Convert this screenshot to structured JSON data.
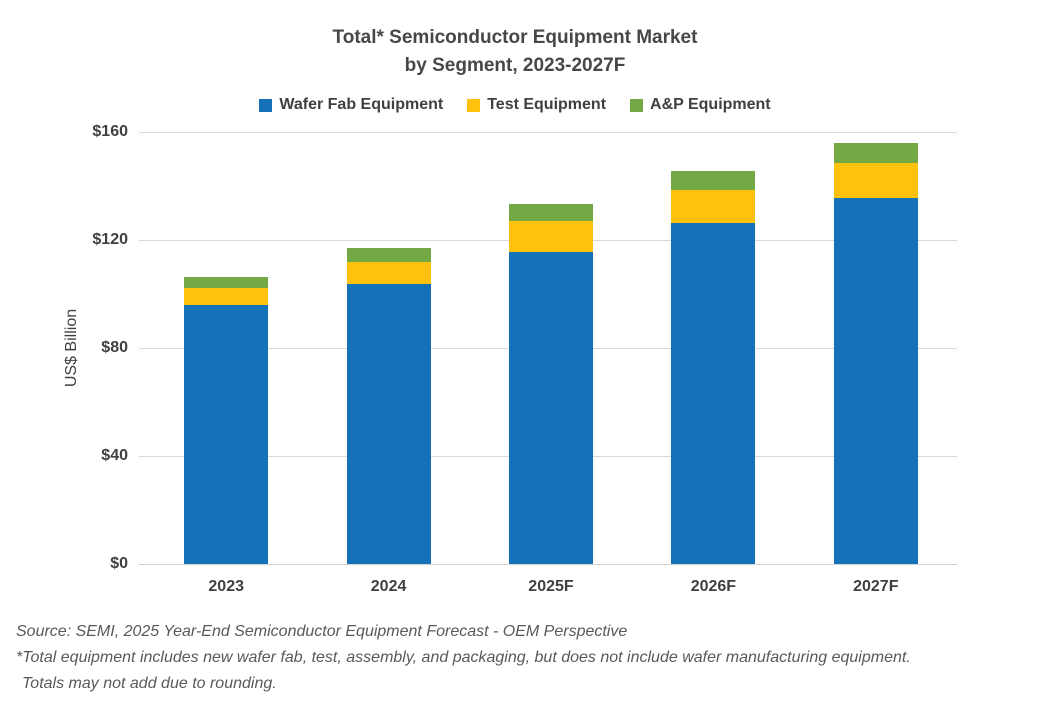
{
  "title": {
    "line1": "Total* Semiconductor Equipment Market",
    "line2": "by Segment, 2023-2027F"
  },
  "colors": {
    "wafer_fab": "#1572B8",
    "test": "#FEC20E",
    "anp": "#72A944",
    "gridline": "#D9D9D9",
    "text": "#404040",
    "footer_text": "#595959"
  },
  "chart_data": {
    "type": "bar",
    "subtype": "stacked",
    "categories": [
      "2023",
      "2024",
      "2025F",
      "2026F",
      "2027F"
    ],
    "series": [
      {
        "name": "Wafer Fab Equipment",
        "color": "#1572B8",
        "values": [
          95.8,
          103.8,
          115.7,
          126.2,
          135.4
        ]
      },
      {
        "name": "Test Equipment",
        "color": "#FEC20E",
        "values": [
          6.4,
          8.2,
          11.4,
          12.3,
          13.3
        ]
      },
      {
        "name": "A&P Equipment",
        "color": "#72A944",
        "values": [
          4.2,
          5.2,
          6.4,
          6.9,
          7.1
        ]
      }
    ],
    "totals_approx": [
      106.4,
      117.2,
      133.5,
      145.4,
      155.8
    ],
    "title": "Total* Semiconductor Equipment Market by Segment, 2023-2027F",
    "xlabel": "",
    "ylabel": "US$ Billion",
    "ylim": [
      0,
      160
    ],
    "ytick_values": [
      0,
      40,
      80,
      120,
      160
    ],
    "ytick_labels": [
      "$0",
      "$40",
      "$80",
      "$120",
      "$160"
    ],
    "grid": true,
    "legend_position": "top"
  },
  "footer": {
    "line1": "Source: SEMI, 2025 Year-End Semiconductor Equipment Forecast - OEM Perspective",
    "line2": "*Total equipment includes new wafer fab, test, assembly, and packaging, but does not include wafer manufacturing equipment.",
    "line3": "Totals may not add due to rounding."
  }
}
